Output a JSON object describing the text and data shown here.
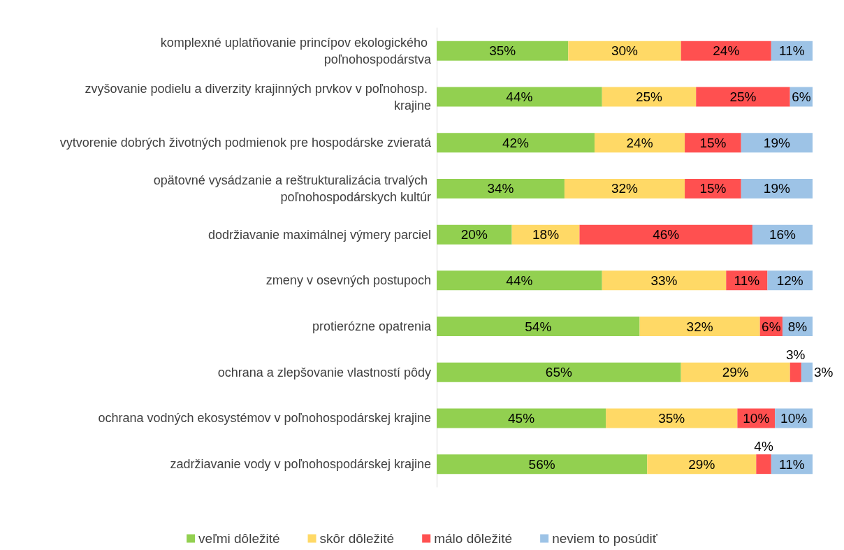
{
  "chart_data": {
    "type": "bar",
    "orientation": "horizontal",
    "stacked": true,
    "xlim": [
      0,
      100
    ],
    "tick_labels": "y",
    "legend": "bottom",
    "categories": [
      "komplexné uplatňovanie princípov ekologického poľnohospodárstva",
      "zvyšovanie podielu a diverzity krajinných prvkov v poľnohosp. krajine",
      "vytvorenie dobrých životných podmienok pre hospodárske zvieratá",
      "opätovné vysádzanie a reštrukturalizácia trvalých poľnohospodárskych kultúr",
      "dodržiavanie maximálnej výmery parciel",
      "zmeny v osevných postupoch",
      "protierózne opatrenia",
      "ochrana a zlepšovanie vlastností pôdy",
      "ochrana vodných ekosystémov v poľnohospodárskej krajine",
      "zadržiavanie vody v poľnohospodárskej krajine"
    ],
    "series": [
      {
        "name": "veľmi dôležité",
        "color": "#92d050",
        "values": [
          35,
          44,
          42,
          34,
          20,
          44,
          54,
          65,
          45,
          56
        ],
        "value_labels": [
          "35%",
          "44%",
          "42%",
          "34%",
          "20%",
          "44%",
          "54%",
          "65%",
          "45%",
          "56%"
        ]
      },
      {
        "name": "skôr dôležité",
        "color": "#ffd966",
        "values": [
          30,
          25,
          24,
          32,
          18,
          33,
          32,
          29,
          35,
          29
        ],
        "value_labels": [
          "30%",
          "25%",
          "24%",
          "32%",
          "18%",
          "33%",
          "32%",
          "29%",
          "35%",
          "29%"
        ]
      },
      {
        "name": "málo dôležité",
        "color": "#ff5050",
        "values": [
          24,
          25,
          15,
          15,
          46,
          11,
          6,
          3,
          10,
          4
        ],
        "value_labels": [
          "24%",
          "25%",
          "15%",
          "15%",
          "46%",
          "11%",
          "6%",
          "3%",
          "10%",
          "4%"
        ]
      },
      {
        "name": "neviem to posúdiť",
        "color": "#9dc3e6",
        "values": [
          11,
          6,
          19,
          19,
          16,
          12,
          8,
          3,
          10,
          11
        ],
        "value_labels": [
          "11%",
          "6%",
          "19%",
          "19%",
          "16%",
          "12%",
          "8%",
          "3%",
          "10%",
          "11%"
        ]
      }
    ]
  }
}
